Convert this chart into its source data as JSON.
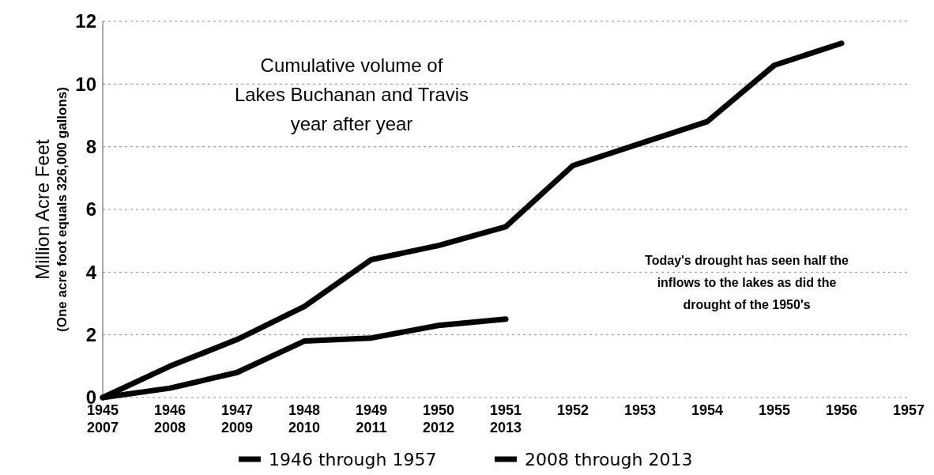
{
  "chart_data": {
    "type": "line",
    "title": "Cumulative volume of\nLakes Buchanan and Travis\nyear after year",
    "ylabel": "Million Acre Feet\n(One acre foot equals 326,000 gallons)",
    "categories": [
      "1945\n2007",
      "1946\n2008",
      "1947\n2009",
      "1948\n2010",
      "1949\n2011",
      "1950\n2012",
      "1951\n2013",
      "1952",
      "1953",
      "1954",
      "1955",
      "1956",
      "1957"
    ],
    "series": [
      {
        "name": "1946 through 1957",
        "color": "#000000",
        "values": [
          0,
          1.0,
          1.85,
          2.9,
          4.4,
          4.85,
          5.45,
          7.4,
          8.1,
          8.8,
          10.6,
          11.3,
          null
        ]
      },
      {
        "name": "2008 through 2013",
        "color": "#000000",
        "values": [
          0,
          0.3,
          0.8,
          1.8,
          1.9,
          2.3,
          2.5,
          null,
          null,
          null,
          null,
          null,
          null
        ]
      }
    ],
    "ylim": [
      0,
      12
    ],
    "yticks": [
      0,
      2,
      4,
      6,
      8,
      10,
      12
    ],
    "grid": "y",
    "legend": "bottom",
    "marker": "none",
    "line_style": "solid",
    "annotations": [
      "Today's drought has seen half the\ninflows to the lakes as did the\ndrought of the 1950's"
    ]
  }
}
